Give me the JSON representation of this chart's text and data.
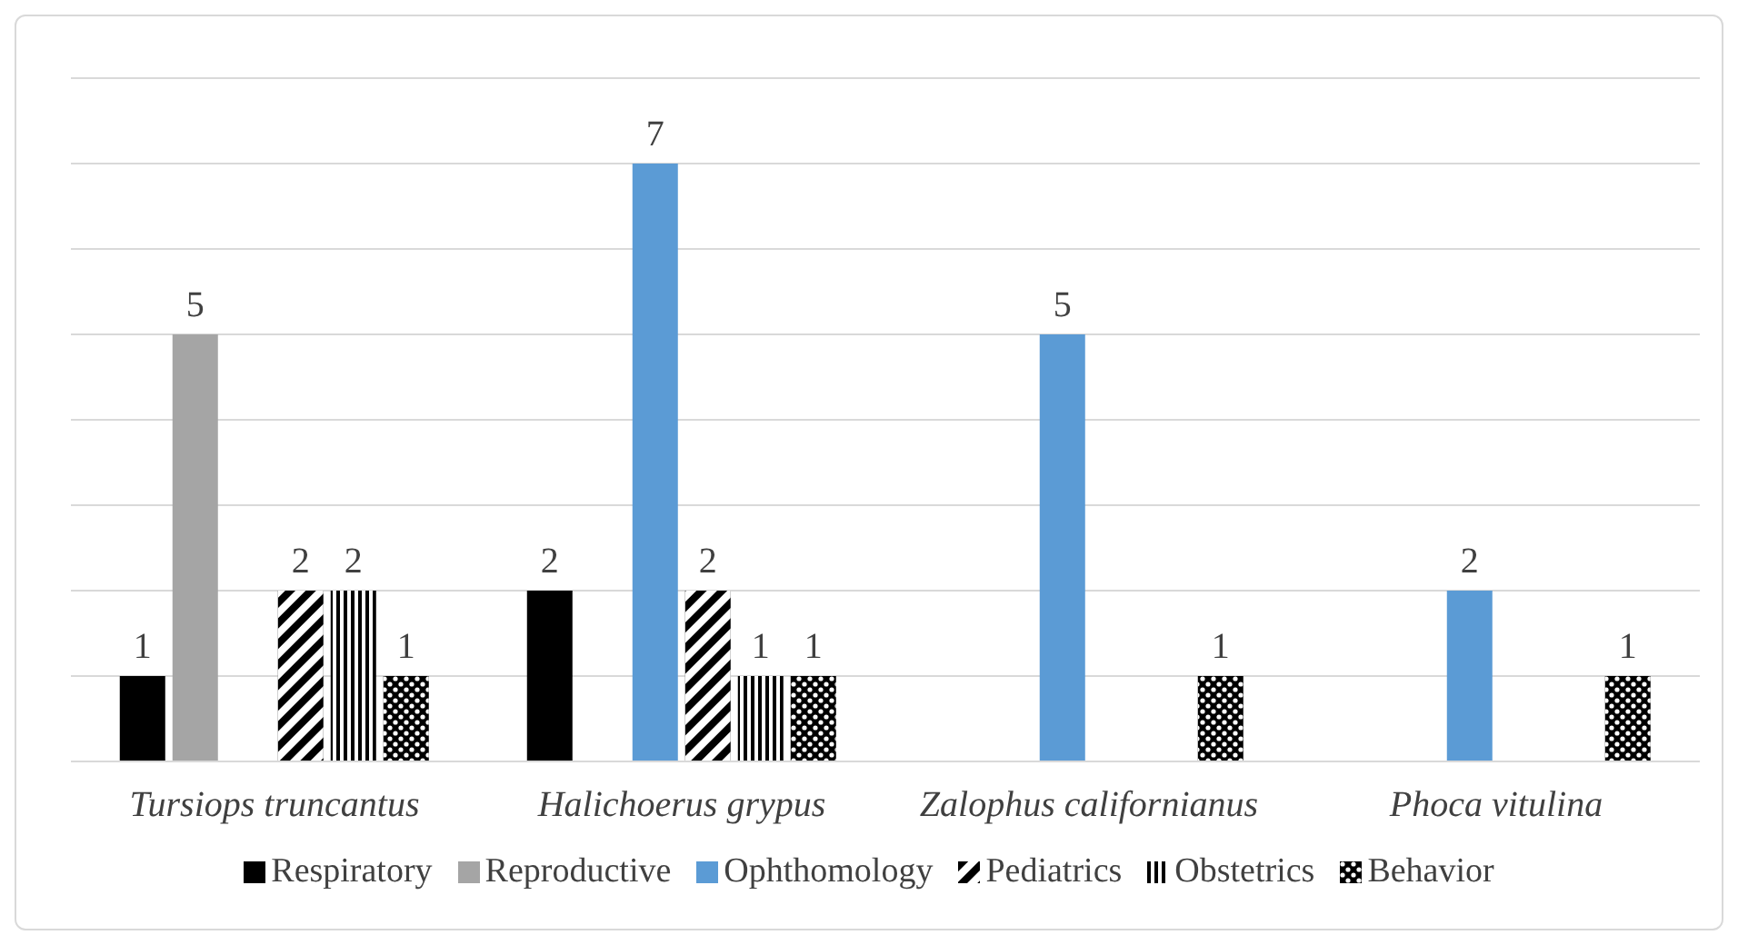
{
  "chart_data": {
    "type": "bar",
    "categories": [
      "Tursiops truncantus",
      "Halichoerus grypus",
      "Zalophus californianus",
      "Phoca vitulina"
    ],
    "series": [
      {
        "name": "Respiratory",
        "color": "#000000",
        "values": [
          1,
          2,
          null,
          null
        ]
      },
      {
        "name": "Reproductive",
        "color": "#a5a5a5",
        "values": [
          5,
          null,
          null,
          null
        ]
      },
      {
        "name": "Ophthomology",
        "color": "#5b9bd5",
        "values": [
          null,
          7,
          5,
          2
        ]
      },
      {
        "name": "Pediatrics",
        "color": "#000000",
        "values": [
          2,
          2,
          null,
          null
        ]
      },
      {
        "name": "Obstetrics",
        "color": "#000000",
        "values": [
          2,
          1,
          null,
          null
        ]
      },
      {
        "name": "Behavior",
        "color": "#000000",
        "values": [
          1,
          1,
          1,
          1
        ]
      }
    ],
    "ylim": [
      0,
      8
    ],
    "yticks": [
      {
        "value": 0,
        "label": null
      },
      {
        "value": 1,
        "label": null
      },
      {
        "value": 2,
        "label": null
      },
      {
        "value": 3,
        "label": null
      },
      {
        "value": 4,
        "label": null
      },
      {
        "value": 5,
        "label": null
      },
      {
        "value": 6,
        "label": null
      },
      {
        "value": 7,
        "label": null
      },
      {
        "value": 8,
        "label": null
      }
    ],
    "grid": "y",
    "tick_labels": "x",
    "data_labels": true,
    "legend": "bottom"
  }
}
